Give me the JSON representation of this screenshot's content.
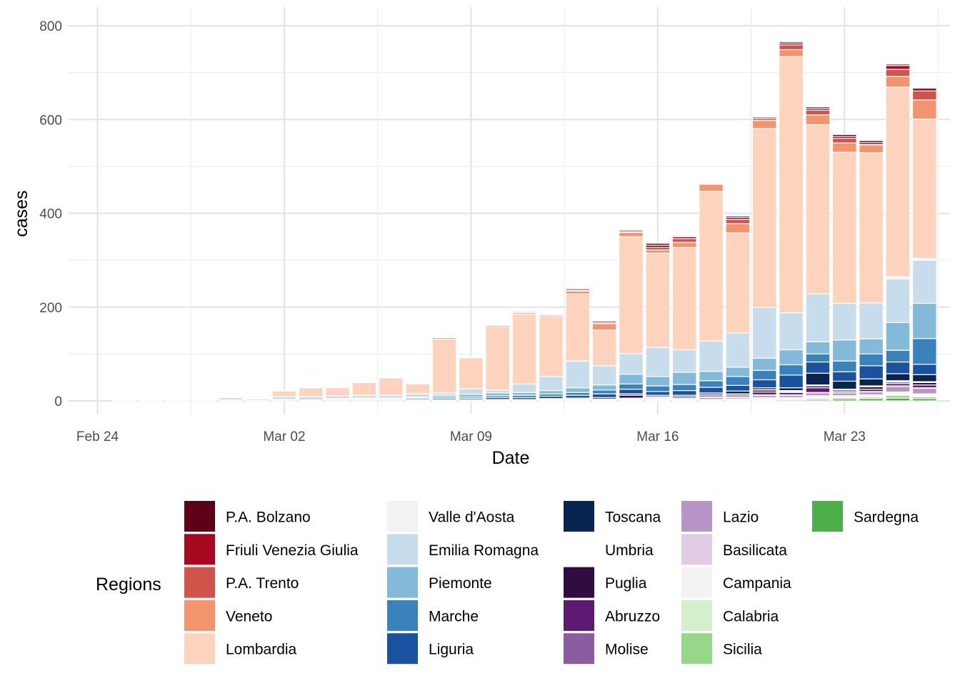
{
  "chart_data": {
    "type": "bar",
    "stacked": true,
    "xlabel": "Date",
    "ylabel": "cases",
    "ylim": [
      0,
      820
    ],
    "yticks": [
      0,
      200,
      400,
      600,
      800
    ],
    "xtick_labels": [
      "Feb 24",
      "Mar 02",
      "Mar 09",
      "Mar 16",
      "Mar 23"
    ],
    "xtick_dates": [
      "2020-02-24",
      "2020-03-02",
      "2020-03-09",
      "2020-03-16",
      "2020-03-23"
    ],
    "grid": true,
    "legend_title": "Regions",
    "legend_position": "bottom",
    "categories": [
      "2020-02-25",
      "2020-02-26",
      "2020-02-27",
      "2020-02-28",
      "2020-02-29",
      "2020-03-01",
      "2020-03-02",
      "2020-03-03",
      "2020-03-04",
      "2020-03-05",
      "2020-03-06",
      "2020-03-07",
      "2020-03-08",
      "2020-03-09",
      "2020-03-10",
      "2020-03-11",
      "2020-03-12",
      "2020-03-13",
      "2020-03-14",
      "2020-03-15",
      "2020-03-16",
      "2020-03-17",
      "2020-03-18",
      "2020-03-19",
      "2020-03-20",
      "2020-03-21",
      "2020-03-22",
      "2020-03-23",
      "2020-03-24",
      "2020-03-25",
      "2020-03-26"
    ],
    "series": [
      {
        "name": "Sardegna",
        "color": "#4DAF4A",
        "values": [
          0,
          0,
          0,
          0,
          0,
          0,
          0,
          0,
          0,
          0,
          0,
          0,
          0,
          0,
          0,
          0,
          0,
          0,
          0,
          0,
          0,
          0,
          0,
          0,
          0,
          0,
          3,
          4,
          5,
          6,
          5
        ]
      },
      {
        "name": "Sicilia",
        "color": "#98D68B",
        "values": [
          0,
          0,
          0,
          0,
          0,
          0,
          0,
          0,
          0,
          0,
          0,
          0,
          0,
          0,
          0,
          0,
          0,
          0,
          0,
          1,
          1,
          1,
          1,
          1,
          2,
          3,
          3,
          3,
          3,
          6,
          4
        ]
      },
      {
        "name": "Calabria",
        "color": "#D4EFCC",
        "values": [
          0,
          0,
          0,
          0,
          0,
          0,
          0,
          0,
          0,
          0,
          0,
          0,
          0,
          0,
          0,
          0,
          0,
          0,
          0,
          0,
          0,
          0,
          0,
          0,
          1,
          1,
          1,
          1,
          1,
          2,
          2
        ]
      },
      {
        "name": "Campania",
        "color": "#F2F2F2",
        "values": [
          0,
          0,
          0,
          0,
          0,
          0,
          0,
          0,
          0,
          0,
          0,
          0,
          0,
          0,
          0,
          0,
          0,
          1,
          1,
          2,
          2,
          1,
          2,
          3,
          4,
          3,
          4,
          3,
          4,
          4,
          3
        ]
      },
      {
        "name": "Basilicata",
        "color": "#E0CCE3",
        "values": [
          0,
          0,
          0,
          0,
          0,
          0,
          0,
          0,
          0,
          0,
          0,
          0,
          0,
          0,
          0,
          0,
          0,
          0,
          0,
          0,
          0,
          0,
          0,
          0,
          0,
          0,
          0,
          0,
          0,
          1,
          1
        ]
      },
      {
        "name": "Lazio",
        "color": "#B895C7",
        "values": [
          0,
          0,
          0,
          0,
          0,
          0,
          0,
          0,
          0,
          0,
          0,
          0,
          0,
          0,
          1,
          0,
          1,
          1,
          1,
          1,
          2,
          2,
          4,
          3,
          5,
          5,
          6,
          6,
          6,
          12,
          12
        ]
      },
      {
        "name": "Molise",
        "color": "#8B5CA0",
        "values": [
          0,
          0,
          0,
          0,
          0,
          0,
          0,
          0,
          0,
          0,
          0,
          0,
          0,
          0,
          0,
          0,
          0,
          0,
          0,
          0,
          0,
          0,
          1,
          1,
          1,
          1,
          1,
          1,
          1,
          1,
          1
        ]
      },
      {
        "name": "Abruzzo",
        "color": "#5E1A72",
        "values": [
          0,
          0,
          0,
          0,
          0,
          0,
          0,
          0,
          0,
          0,
          0,
          0,
          0,
          0,
          0,
          0,
          1,
          1,
          1,
          2,
          2,
          2,
          3,
          3,
          6,
          5,
          10,
          3,
          5,
          5,
          6
        ]
      },
      {
        "name": "Puglia",
        "color": "#300C40",
        "values": [
          0,
          0,
          0,
          0,
          0,
          0,
          0,
          0,
          0,
          0,
          0,
          0,
          1,
          1,
          1,
          1,
          1,
          1,
          1,
          6,
          2,
          3,
          3,
          3,
          4,
          2,
          4,
          3,
          5,
          3,
          5
        ]
      },
      {
        "name": "Umbria",
        "color": "#FFFFFF",
        "values": [
          0,
          0,
          0,
          0,
          0,
          0,
          0,
          0,
          0,
          0,
          0,
          0,
          0,
          0,
          0,
          0,
          0,
          0,
          0,
          0,
          0,
          0,
          0,
          1,
          1,
          2,
          2,
          1,
          2,
          3,
          2
        ]
      },
      {
        "name": "Toscana",
        "color": "#08254F",
        "values": [
          0,
          0,
          0,
          0,
          0,
          0,
          0,
          0,
          0,
          0,
          0,
          1,
          1,
          1,
          1,
          2,
          2,
          2,
          3,
          3,
          3,
          3,
          3,
          6,
          4,
          6,
          25,
          17,
          15,
          15,
          15
        ]
      },
      {
        "name": "Liguria",
        "color": "#1A52A0",
        "values": [
          0,
          0,
          0,
          0,
          0,
          0,
          2,
          1,
          2,
          2,
          2,
          2,
          3,
          3,
          4,
          4,
          5,
          6,
          8,
          10,
          8,
          10,
          12,
          12,
          17,
          27,
          24,
          20,
          28,
          25,
          22
        ]
      },
      {
        "name": "Marche",
        "color": "#3A82BC",
        "values": [
          0,
          0,
          0,
          0,
          0,
          1,
          1,
          1,
          2,
          2,
          2,
          3,
          3,
          3,
          4,
          5,
          5,
          6,
          8,
          11,
          12,
          13,
          14,
          19,
          20,
          22,
          17,
          23,
          25,
          25,
          55
        ]
      },
      {
        "name": "Piemonte",
        "color": "#84BAD9",
        "values": [
          0,
          0,
          0,
          0,
          0,
          0,
          0,
          0,
          1,
          2,
          2,
          2,
          4,
          6,
          6,
          6,
          7,
          10,
          11,
          21,
          20,
          26,
          20,
          20,
          26,
          32,
          26,
          45,
          32,
          59,
          75
        ]
      },
      {
        "name": "Emilia Romagna",
        "color": "#C7DDEB",
        "values": [
          1,
          1,
          2,
          1,
          2,
          3,
          6,
          7,
          6,
          6,
          6,
          7,
          5,
          12,
          6,
          18,
          30,
          57,
          41,
          44,
          62,
          48,
          65,
          73,
          108,
          79,
          102,
          78,
          77,
          93,
          92
        ]
      },
      {
        "name": "Valle d'Aosta",
        "color": "#F2F2F2",
        "values": [
          0,
          0,
          0,
          0,
          0,
          0,
          0,
          0,
          0,
          0,
          0,
          0,
          0,
          0,
          0,
          0,
          0,
          0,
          0,
          0,
          0,
          0,
          0,
          0,
          0,
          0,
          0,
          0,
          0,
          5,
          4
        ]
      },
      {
        "name": "Lombardia",
        "color": "#FDD3BE",
        "values": [
          1,
          1,
          2,
          2,
          5,
          0,
          12,
          19,
          17,
          27,
          37,
          21,
          115,
          66,
          135,
          149,
          127,
          143,
          76,
          249,
          201,
          218,
          319,
          213,
          382,
          546,
          361,
          322,
          320,
          404,
          297
        ]
      },
      {
        "name": "Veneto",
        "color": "#F2956F",
        "values": [
          0,
          1,
          0,
          1,
          0,
          0,
          0,
          1,
          0,
          1,
          1,
          0,
          3,
          2,
          3,
          3,
          3,
          6,
          14,
          9,
          7,
          11,
          15,
          20,
          17,
          15,
          21,
          20,
          17,
          23,
          41
        ]
      },
      {
        "name": "P.A. Trento",
        "color": "#D0544A",
        "values": [
          0,
          0,
          0,
          0,
          0,
          0,
          0,
          0,
          0,
          0,
          0,
          0,
          0,
          0,
          1,
          1,
          1,
          2,
          2,
          2,
          5,
          8,
          2,
          9,
          4,
          10,
          10,
          10,
          1,
          15,
          19
        ]
      },
      {
        "name": "Friuli Venezia Giulia",
        "color": "#A6081F",
        "values": [
          0,
          0,
          0,
          0,
          0,
          0,
          0,
          0,
          0,
          0,
          1,
          0,
          1,
          1,
          1,
          2,
          2,
          3,
          3,
          3,
          5,
          4,
          1,
          4,
          3,
          4,
          4,
          4,
          4,
          8,
          6
        ]
      },
      {
        "name": "P.A. Bolzano",
        "color": "#5E0018",
        "values": [
          0,
          0,
          0,
          0,
          0,
          0,
          0,
          0,
          0,
          0,
          0,
          0,
          0,
          0,
          0,
          0,
          0,
          0,
          0,
          0,
          4,
          2,
          0,
          3,
          0,
          3,
          3,
          4,
          4,
          3,
          1
        ]
      }
    ]
  },
  "legend": {
    "title": "Regions",
    "columns": [
      [
        "P.A. Bolzano",
        "Friuli Venezia Giulia",
        "P.A. Trento",
        "Veneto",
        "Lombardia"
      ],
      [
        "Valle d'Aosta",
        "Emilia Romagna",
        "Piemonte",
        "Marche",
        "Liguria"
      ],
      [
        "Toscana",
        "Umbria",
        "Puglia",
        "Abruzzo",
        "Molise"
      ],
      [
        "Lazio",
        "Basilicata",
        "Campania",
        "Calabria",
        "Sicilia"
      ],
      [
        "Sardegna"
      ]
    ]
  }
}
